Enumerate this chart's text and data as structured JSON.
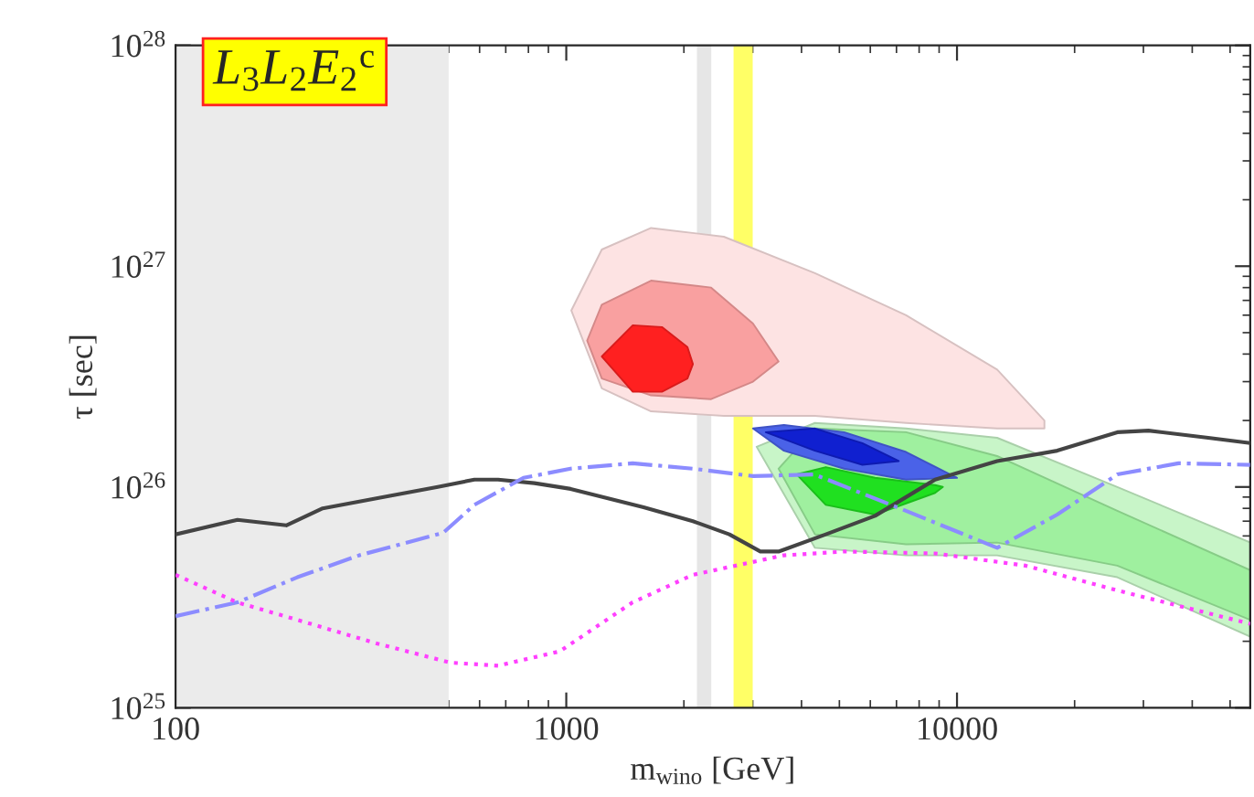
{
  "chart_data": {
    "type": "line",
    "xlabel": "m$_{wino}$ [GeV]",
    "ylabel": "τ [sec]",
    "annotations": [
      "L$_{3}$L$_{2}$E$_{2}$$^{c}$"
    ],
    "log": "xy",
    "xlim": [
      100,
      56300
    ],
    "ylim": [
      1e+25,
      1e+28
    ],
    "xticks": [
      100,
      1000,
      10000
    ],
    "yticks": [
      {
        "value": 1e+25,
        "label": "10$^{25}$"
      },
      {
        "value": 1e+26,
        "label": "10$^{26}$"
      },
      {
        "value": 1e+27,
        "label": "10$^{27}$"
      },
      {
        "value": 1e+28,
        "label": "10$^{28}$"
      }
    ],
    "grid": false,
    "bands": [
      {
        "axis": "x",
        "from": 100,
        "to": 500,
        "color": "#ebebeb"
      },
      {
        "axis": "x",
        "from": 2160,
        "to": 2350,
        "color": "#e6e6e6"
      },
      {
        "axis": "x",
        "from": 2680,
        "to": 3000,
        "color": "#ffff66"
      }
    ],
    "series": [
      {
        "type": "area",
        "color": "#fde3e3",
        "x": [
          1030,
          1233,
          1648,
          2531,
          4330,
          7406,
          12670,
          16740,
          16740,
          12670,
          7406,
          4330,
          2531,
          1648,
          1233
        ],
        "values": [
          6.3e+26,
          1.19e+27,
          1.49e+27,
          1.36e+27,
          9.3e+26,
          6e+26,
          3.4e+26,
          2e+26,
          1.84e+26,
          1.84e+26,
          1.95e+26,
          2.1e+26,
          2.1e+26,
          2.2e+26,
          2.8e+26
        ]
      },
      {
        "type": "area",
        "color": "#f9a0a0",
        "x": [
          1131,
          1233,
          1648,
          2348,
          3005,
          3494,
          3005,
          2348,
          1648,
          1233
        ],
        "values": [
          4.6e+26,
          6.7e+26,
          8.6e+26,
          8e+26,
          5.5e+26,
          3.7e+26,
          3e+26,
          2.5e+26,
          2.6e+26,
          3.1e+26
        ]
      },
      {
        "type": "area",
        "color": "#ff2020",
        "x": [
          1233,
          1480,
          1757,
          2042,
          2109,
          2042,
          1757,
          1480
        ],
        "values": [
          3.9e+26,
          5.4e+26,
          5.3e+26,
          4.3e+26,
          3.6e+26,
          3.1e+26,
          2.7e+26,
          2.7e+26
        ]
      },
      {
        "type": "area",
        "color": "#c8f5c8",
        "x": [
          3071,
          4330,
          7406,
          12670,
          25720,
          56300,
          56300,
          25720,
          12670,
          7406,
          4330
        ],
        "values": [
          1.52e+26,
          1.95e+26,
          1.84e+26,
          1.67e+26,
          1e+26,
          5.6e+25,
          2.1e+25,
          3.9e+25,
          4.9e+25,
          4.9e+25,
          5.3e+25
        ]
      },
      {
        "type": "area",
        "color": "#9ff09f",
        "x": [
          3494,
          4330,
          7406,
          12670,
          25720,
          56300,
          56300,
          25720,
          12670,
          7406,
          4330
        ],
        "values": [
          1.21e+26,
          1.84e+26,
          1.77e+26,
          1.38e+26,
          7.8e+25,
          4.2e+25,
          2.5e+25,
          4.4e+25,
          5.6e+25,
          5.5e+25,
          6.1e+25
        ]
      },
      {
        "type": "area",
        "color": "#20e020",
        "x": [
          3890,
          4616,
          6170,
          8790,
          9200,
          8790,
          6170,
          4616
        ],
        "values": [
          1.14e+26,
          1.23e+26,
          1.1e+26,
          1.02e+26,
          1e+26,
          9.4e+25,
          7.5e+25,
          8.3e+25
        ]
      },
      {
        "type": "area",
        "color": "#4a62e8",
        "x": [
          3005,
          3607,
          5140,
          7406,
          10000,
          7406,
          5140,
          3607
        ],
        "values": [
          1.84e+26,
          1.91e+26,
          1.77e+26,
          1.44e+26,
          1.1e+26,
          1.08e+26,
          1.21e+26,
          1.46e+26
        ]
      },
      {
        "type": "area",
        "color": "#1020d0",
        "x": [
          3240,
          4330,
          5725,
          7094,
          5725,
          4330
        ],
        "values": [
          1.77e+26,
          1.84e+26,
          1.58e+26,
          1.31e+26,
          1.26e+26,
          1.46e+26
        ]
      },
      {
        "color": "#444444",
        "line_style": "solid",
        "x": [
          100,
          144,
          192,
          238,
          351,
          469,
          582,
          669,
          829,
          1026,
          1577,
          2109,
          2614,
          3138,
          3494,
          4617,
          6170,
          8790,
          12670,
          18050,
          25720,
          30900,
          43960,
          56300
        ],
        "values": [
          6.1e+25,
          7.1e+25,
          6.7e+25,
          8e+25,
          9.1e+25,
          1e+26,
          1.08e+26,
          1.08e+26,
          1.04e+26,
          9.8e+25,
          8.1e+25,
          7e+25,
          6.1e+25,
          5.1e+25,
          5.1e+25,
          6.1e+25,
          7.4e+25,
          1.08e+26,
          1.31e+26,
          1.46e+26,
          1.77e+26,
          1.8e+26,
          1.67e+26,
          1.58e+26
        ]
      },
      {
        "color": "#8c8cff",
        "line_style": "dashdot",
        "x": [
          100,
          144,
          205,
          295,
          484,
          582,
          777,
          1026,
          1478,
          2109,
          3007,
          4310,
          7400,
          12670,
          18050,
          25720,
          36900,
          56300
        ],
        "values": [
          2.6e+25,
          3e+25,
          3.9e+25,
          4.9e+25,
          6.2e+25,
          8.3e+25,
          1.1e+26,
          1.21e+26,
          1.28e+26,
          1.21e+26,
          1.12e+26,
          1.14e+26,
          7.8e+25,
          5.3e+25,
          7.5e+25,
          1.14e+26,
          1.28e+26,
          1.26e+26
        ]
      },
      {
        "color": "#ff40ff",
        "line_style": "dotted",
        "x": [
          100,
          144,
          205,
          329,
          506,
          669,
          962,
          1478,
          2109,
          3600,
          5150,
          8790,
          15000,
          25720,
          56300
        ],
        "values": [
          4e+25,
          3e+25,
          2.5e+25,
          1.95e+25,
          1.6e+25,
          1.55e+25,
          1.8e+25,
          3e+25,
          4e+25,
          4.9e+25,
          5.1e+25,
          5e+25,
          4.4e+25,
          3.4e+25,
          2.4e+25
        ]
      }
    ]
  }
}
